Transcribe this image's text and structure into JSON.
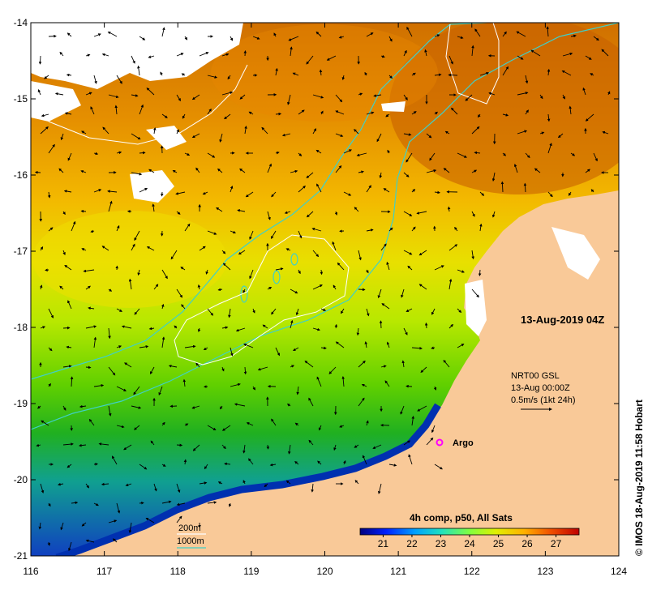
{
  "map": {
    "date_label": "13-Aug-2019 04Z",
    "credit": "© IMOS 18-Aug-2019 11:58 Hobart",
    "longitude_ticks": [
      "116",
      "117",
      "118",
      "119",
      "120",
      "121",
      "122",
      "123",
      "124"
    ],
    "latitude_ticks": [
      "-14",
      "-15",
      "-16",
      "-17",
      "-18",
      "-19",
      "-20",
      "-21"
    ],
    "longitude_range": [
      116,
      124
    ],
    "latitude_range": [
      -21,
      -14
    ],
    "current_info": {
      "line1": "NRT00 GSL",
      "line2": "13-Aug 00:00Z",
      "line3": "0.5m/s (1kt 24h)"
    },
    "argo_label": "Argo",
    "argo_color": "#ff00ff",
    "legend": {
      "contour_200m": "200m",
      "contour_1000m": "1000m",
      "color_200m": "#ffffff",
      "color_1000m": "#3fd0c8"
    },
    "colorbar": {
      "title": "4h comp, p50, All Sats",
      "ticks": [
        "21",
        "22",
        "23",
        "24",
        "25",
        "26",
        "27"
      ],
      "range": [
        20.2,
        27.8
      ]
    },
    "colors": {
      "land": "#f9c998",
      "cloud": "#ffffff"
    }
  }
}
